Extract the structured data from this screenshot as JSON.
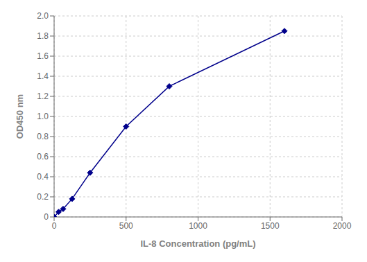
{
  "chart_data": {
    "type": "line",
    "xlabel": "IL-8 Concentration (pg/mL)",
    "ylabel": "OD450 nm",
    "x": [
      0,
      31.25,
      62.5,
      125,
      250,
      500,
      800,
      1600
    ],
    "values": [
      0.0,
      0.05,
      0.08,
      0.18,
      0.44,
      0.9,
      1.3,
      1.85
    ],
    "color": "#00008B",
    "marker": "diamond",
    "xlim": [
      0,
      2000
    ],
    "ylim": [
      0,
      2.0
    ],
    "xticks": [
      0,
      500,
      1000,
      1500,
      2000
    ],
    "yticks": [
      0,
      0.2,
      0.4,
      0.6,
      0.8,
      {
        "value": 1.0,
        "label": "1.0"
      },
      1.2,
      1.4,
      1.6,
      1.8,
      {
        "value": 2.0,
        "label": "2.0"
      }
    ],
    "grid": true
  }
}
